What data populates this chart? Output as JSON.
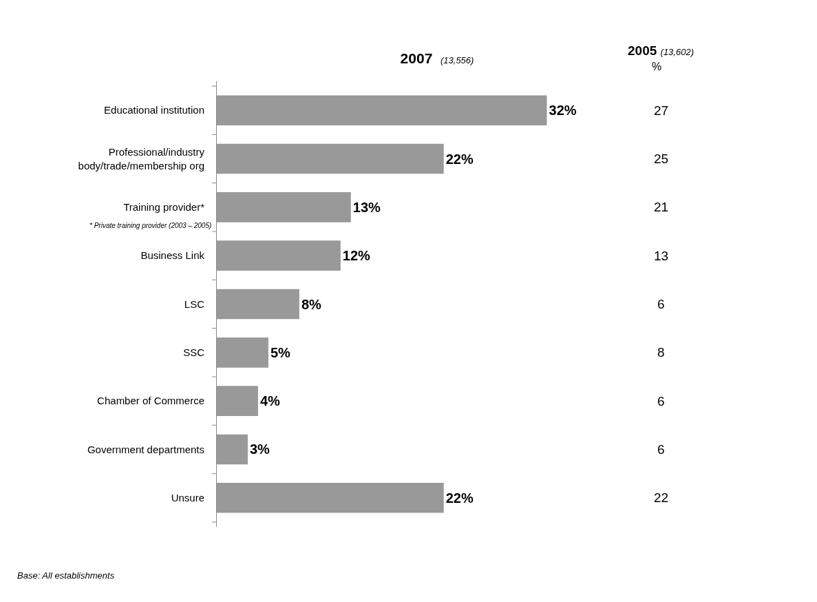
{
  "chart_data": {
    "type": "bar",
    "orientation": "horizontal",
    "title": "2007 (13,556)",
    "categories": [
      "Educational institution",
      "Professional/industry\nbody/trade/membership org",
      "Training provider*",
      "Business Link",
      "LSC",
      "SSC",
      "Chamber of Commerce",
      "Government departments",
      "Unsure"
    ],
    "values": [
      32,
      22,
      13,
      12,
      8,
      5,
      4,
      3,
      22
    ],
    "value_labels": [
      "32%",
      "22%",
      "13%",
      "12%",
      "8%",
      "5%",
      "4%",
      "3%",
      "22%"
    ],
    "color": "#999999",
    "tick_labels": "y",
    "legend": false,
    "annotations": [
      "2005 (13,602)",
      "%",
      "* Private training provider (2003 – 2005)",
      "Base: All establishments",
      "27",
      "25",
      "21",
      "13",
      "6",
      "8",
      "6",
      "6",
      "22"
    ]
  }
}
